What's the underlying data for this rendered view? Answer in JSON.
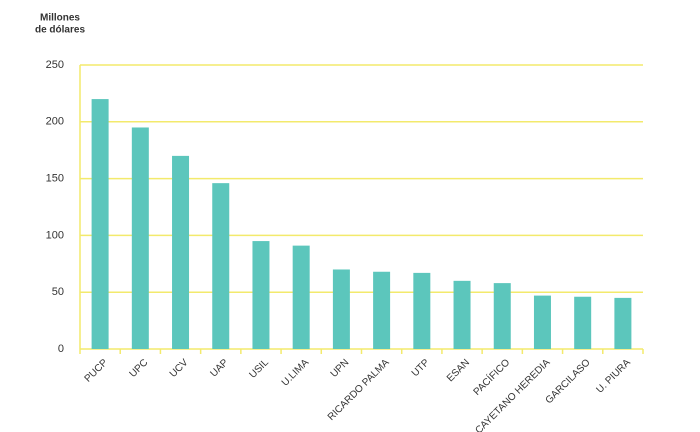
{
  "chart_data": {
    "type": "bar",
    "ylabel": [
      "Millones",
      "de dólares"
    ],
    "categories": [
      "PUCP",
      "UPC",
      "UCV",
      "UAP",
      "USIL",
      "U.LIMA",
      "UPN",
      "RICARDO PALMA",
      "UTP",
      "ESAN",
      "PACÍFICO",
      "CAYETANO HEREDIA",
      "GARCILASO",
      "U. PIURA"
    ],
    "values": [
      220,
      195,
      170,
      146,
      95,
      91,
      70,
      68,
      67,
      60,
      58,
      47,
      46,
      45
    ],
    "color": "#5cc6bc",
    "ylim": [
      0,
      250
    ],
    "yticks": [
      0,
      50,
      100,
      150,
      200,
      250
    ],
    "grid": true,
    "grid_color": "#f3ea6c"
  }
}
